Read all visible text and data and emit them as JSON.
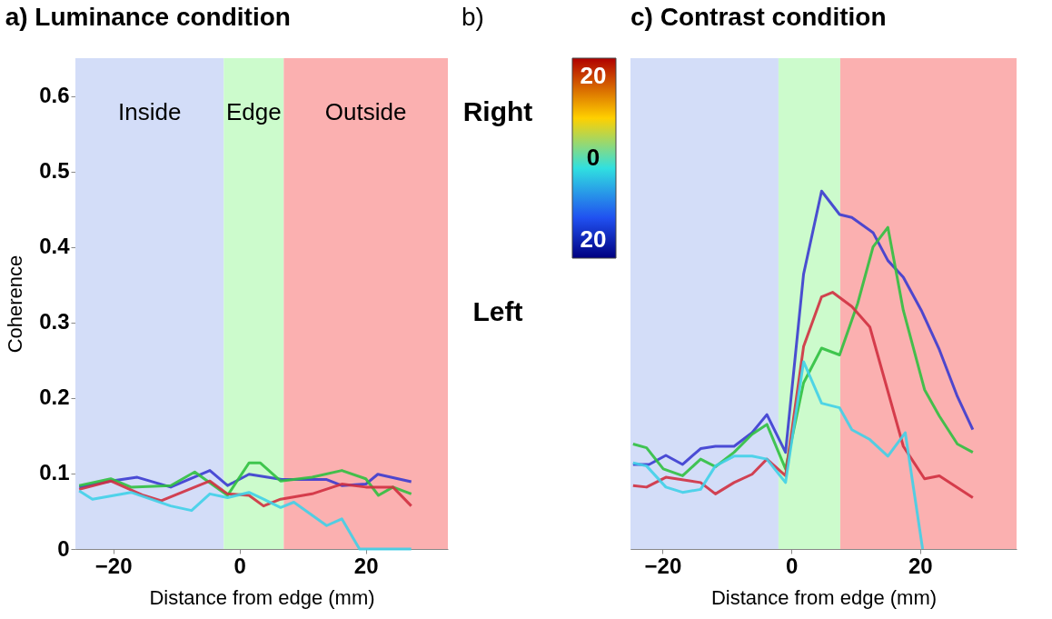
{
  "chart_data": [
    {
      "type": "line",
      "title": "a)  Luminance condition",
      "xlabel": "Distance from edge (mm)",
      "ylabel": "Coherence",
      "xlim": [
        -26,
        33
      ],
      "xticks": [
        -20,
        0,
        20
      ],
      "ylim": [
        0,
        0.65
      ],
      "yticks": [
        0,
        0.1,
        0.2,
        0.3,
        0.4,
        0.5,
        0.6
      ],
      "grid": false,
      "bands": [
        {
          "axis": "x",
          "from": -26,
          "to": -2.5,
          "label": "Inside",
          "color": "#d3ddf8"
        },
        {
          "axis": "x",
          "from": -2.5,
          "to": 7,
          "label": "Edge",
          "color": "#ccfbcc"
        },
        {
          "axis": "x",
          "from": 7,
          "to": 33,
          "label": "Outside",
          "color": "#fbb0b0"
        }
      ],
      "series": [
        {
          "color": "#3b3bd0",
          "x": [
            -25.4,
            -20.4,
            -16.2,
            -10.9,
            -4.7,
            -1.9,
            1.5,
            6.7,
            13.8,
            16.2,
            20,
            21.9,
            27.2
          ],
          "values": [
            0.082,
            0.09,
            0.095,
            0.082,
            0.104,
            0.084,
            0.099,
            0.092,
            0.092,
            0.084,
            0.086,
            0.099,
            0.089
          ]
        },
        {
          "color": "#30c040",
          "x": [
            -25.4,
            -20.4,
            -17.2,
            -10.9,
            -7.1,
            -1.9,
            1.5,
            3.3,
            6.5,
            11.5,
            16.2,
            20,
            22,
            24.3,
            27.2
          ],
          "values": [
            0.084,
            0.093,
            0.082,
            0.084,
            0.102,
            0.071,
            0.114,
            0.114,
            0.09,
            0.095,
            0.104,
            0.093,
            0.071,
            0.082,
            0.073
          ]
        },
        {
          "color": "#d03040",
          "x": [
            -25.4,
            -20.4,
            -15.2,
            -12.4,
            -8.6,
            -4.7,
            -1.9,
            1.5,
            3.8,
            6.5,
            11.5,
            16.2,
            20,
            24.3,
            27.2
          ],
          "values": [
            0.079,
            0.09,
            0.071,
            0.064,
            0.077,
            0.09,
            0.073,
            0.071,
            0.057,
            0.066,
            0.073,
            0.086,
            0.082,
            0.082,
            0.057
          ]
        },
        {
          "color": "#40d0e8",
          "x": [
            -25.4,
            -23.3,
            -17.2,
            -10.9,
            -7.6,
            -4.7,
            -1.9,
            1.5,
            3.8,
            6.5,
            8.6,
            13.8,
            16.2,
            19,
            27.2
          ],
          "values": [
            0.077,
            0.066,
            0.075,
            0.057,
            0.051,
            0.073,
            0.068,
            0.075,
            0.066,
            0.055,
            0.062,
            0.031,
            0.04,
            0,
            0
          ]
        }
      ]
    },
    {
      "type": "other",
      "title": "b)",
      "annotations": [
        "Right",
        "20",
        "0",
        "20",
        "Left"
      ]
    },
    {
      "type": "line",
      "title": "c)  Contrast condition",
      "xlabel": "Distance from edge (mm)",
      "xlim": [
        -25,
        35
      ],
      "xticks": [
        -20,
        0,
        20
      ],
      "ylim": [
        0,
        0.65
      ],
      "tick_labels": "x",
      "grid": false,
      "bands": [
        {
          "axis": "x",
          "from": -25,
          "to": -2,
          "color": "#d3ddf8"
        },
        {
          "axis": "x",
          "from": -2,
          "to": 7.6,
          "color": "#ccfbcc"
        },
        {
          "axis": "x",
          "from": 7.6,
          "to": 35,
          "color": "#fbb0b0"
        }
      ],
      "series": [
        {
          "color": "#3b3bd0",
          "x": [
            -24.6,
            -22.1,
            -19.5,
            -16.9,
            -14.1,
            -11.8,
            -8.9,
            -6.1,
            -3.8,
            -0.9,
            1.9,
            4.7,
            7.5,
            9.4,
            12.7,
            15,
            17.4,
            20.2,
            23,
            25.8,
            28.2
          ],
          "values": [
            0.112,
            0.112,
            0.124,
            0.112,
            0.133,
            0.136,
            0.136,
            0.154,
            0.178,
            0.128,
            0.364,
            0.474,
            0.443,
            0.439,
            0.419,
            0.382,
            0.36,
            0.316,
            0.264,
            0.202,
            0.158
          ]
        },
        {
          "color": "#30c040",
          "x": [
            -24.6,
            -22.5,
            -19.9,
            -16.9,
            -14.1,
            -11.8,
            -8.9,
            -6.1,
            -3.8,
            -0.9,
            1.9,
            4.7,
            7.5,
            10.3,
            12.7,
            15,
            17.4,
            20.7,
            23,
            25.8,
            28.2
          ],
          "values": [
            0.139,
            0.134,
            0.106,
            0.097,
            0.119,
            0.109,
            0.128,
            0.152,
            0.165,
            0.106,
            0.22,
            0.266,
            0.257,
            0.325,
            0.4,
            0.426,
            0.316,
            0.211,
            0.176,
            0.139,
            0.128
          ]
        },
        {
          "color": "#d03040",
          "x": [
            -24.6,
            -22.5,
            -19.5,
            -14.1,
            -11.8,
            -8.9,
            -6.1,
            -3.8,
            -0.9,
            1.9,
            4.7,
            6.4,
            9.4,
            12.2,
            17.4,
            20.7,
            23,
            28.2
          ],
          "values": [
            0.084,
            0.082,
            0.095,
            0.088,
            0.073,
            0.088,
            0.099,
            0.119,
            0.097,
            0.268,
            0.334,
            0.34,
            0.321,
            0.294,
            0.136,
            0.093,
            0.097,
            0.068
          ]
        },
        {
          "color": "#40d0e8",
          "x": [
            -24.6,
            -22.5,
            -19.5,
            -16.9,
            -14.1,
            -11.8,
            -8.9,
            -6.1,
            -3.8,
            -0.9,
            1.9,
            4.7,
            7.5,
            9.4,
            12.2,
            15,
            17.7,
            20.4
          ],
          "values": [
            0.114,
            0.11,
            0.082,
            0.075,
            0.079,
            0.11,
            0.123,
            0.123,
            0.119,
            0.088,
            0.248,
            0.193,
            0.187,
            0.158,
            0.145,
            0.123,
            0.154,
            0
          ]
        }
      ]
    }
  ]
}
